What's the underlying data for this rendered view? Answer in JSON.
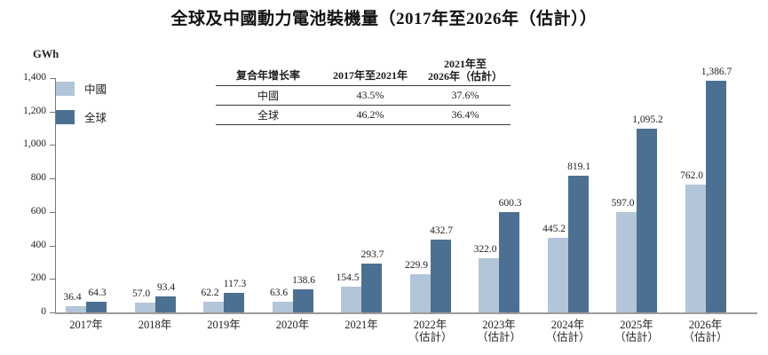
{
  "title": "全球及中國動力電池裝機量（2017年至2026年（估計））",
  "y_axis_unit": "GWh",
  "legend": {
    "china_label": "中國",
    "global_label": "全球"
  },
  "cagr_table": {
    "header": {
      "metric": "复合年增长率",
      "period1": "2017年至2021年",
      "period2": "2021年至\n2026年（估計）"
    },
    "rows": [
      {
        "label": "中國",
        "cagr_2017_2021": "43.5%",
        "cagr_2021_2026": "37.6%"
      },
      {
        "label": "全球",
        "cagr_2017_2021": "46.2%",
        "cagr_2021_2026": "36.4%"
      }
    ]
  },
  "chart_data": {
    "type": "bar",
    "title": "全球及中國動力電池裝機量（2017年至2026年（估計））",
    "xlabel": "",
    "ylabel": "GWh",
    "ylim": [
      0,
      1400
    ],
    "y_ticks": [
      "0",
      "200",
      "400",
      "600",
      "800",
      "1,000",
      "1,200",
      "1,400"
    ],
    "grid": false,
    "legend_position": "top-left",
    "categories": [
      "2017年",
      "2018年",
      "2019年",
      "2020年",
      "2021年",
      "2022年\n（估計）",
      "2023年\n（估計）",
      "2024年\n（估計）",
      "2025年\n（估計）",
      "2026年\n（估計）"
    ],
    "series": [
      {
        "name": "中國",
        "color": "#b3c5d9",
        "values": [
          36.4,
          57.0,
          62.2,
          63.6,
          154.5,
          229.9,
          322.0,
          445.2,
          597.0,
          762.0
        ],
        "display": [
          "36.4",
          "57.0",
          "62.2",
          "63.6",
          "154.5",
          "229.9",
          "322.0",
          "445.2",
          "597.0",
          "762.0"
        ]
      },
      {
        "name": "全球",
        "color": "#4b7092",
        "values": [
          64.3,
          93.4,
          117.3,
          138.6,
          293.7,
          432.7,
          600.3,
          819.1,
          1095.2,
          1386.7
        ],
        "display": [
          "64.3",
          "93.4",
          "117.3",
          "138.6",
          "293.7",
          "432.7",
          "600.3",
          "819.1",
          "1,095.2",
          "1,386.7"
        ]
      }
    ]
  }
}
